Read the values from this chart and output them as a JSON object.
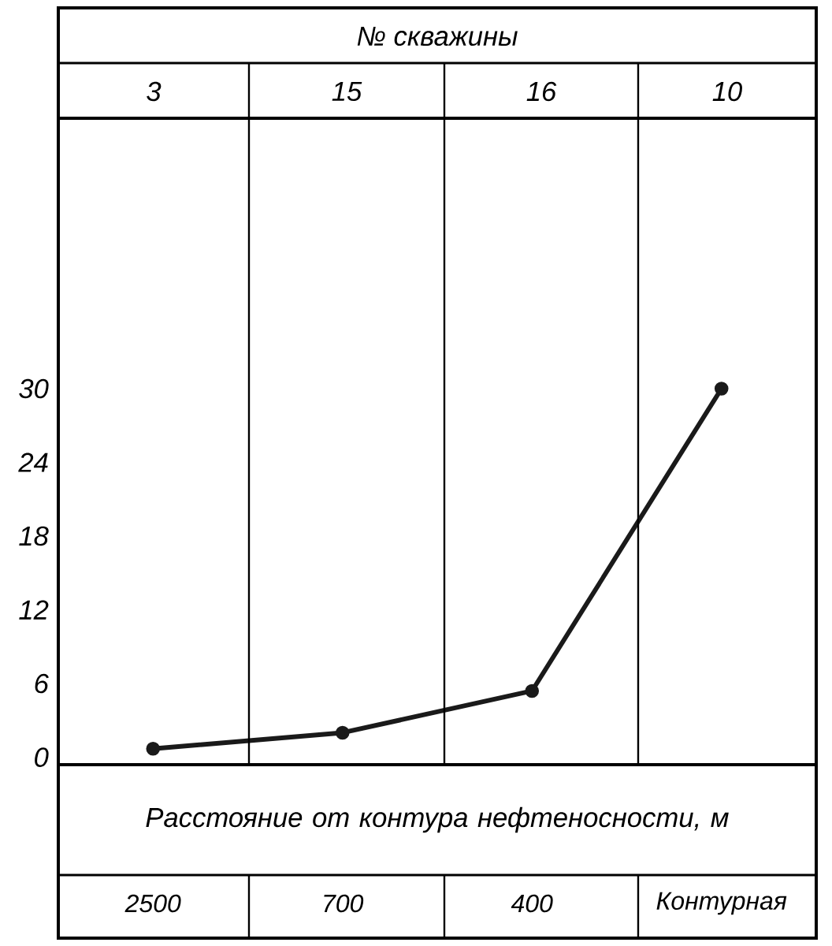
{
  "chart_data": {
    "type": "line",
    "title": "№ скважины",
    "xlabel": "Расстояние от контура нефтеносности, м",
    "categories": [
      "2500",
      "700",
      "400",
      "Контурная"
    ],
    "annotations": [
      "3",
      "15",
      "16",
      "10"
    ],
    "values": [
      0.7,
      2.0,
      5.4,
      30
    ],
    "color": "#1a1a1a",
    "ylim": [
      -0.6,
      52
    ],
    "yticks": [
      0,
      6,
      12,
      18,
      24,
      30
    ],
    "marker": "circle",
    "line_style": "solid"
  }
}
